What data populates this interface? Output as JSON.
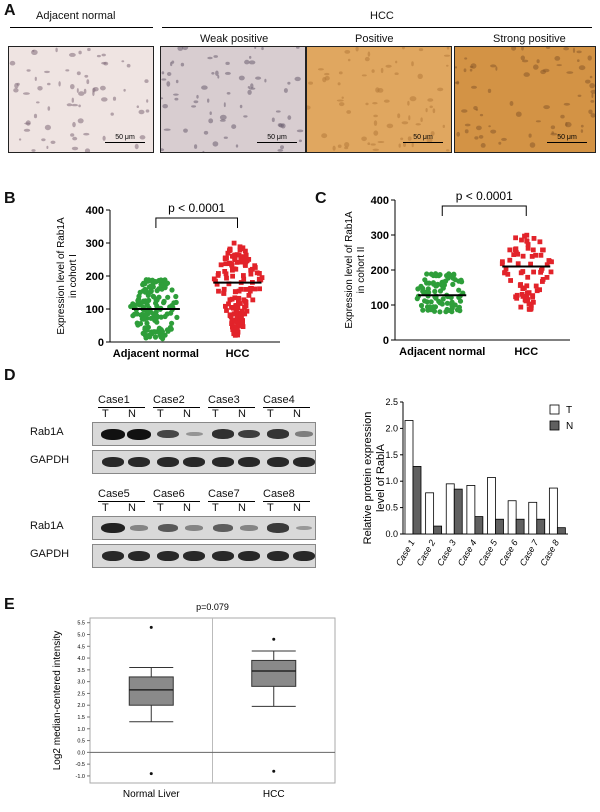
{
  "panelA": {
    "label": "A",
    "header_normal": "Adjacent normal",
    "header_hcc": "HCC",
    "images": [
      {
        "title": "",
        "scale": "50 μm",
        "tone": "#efe4e2",
        "fleck": "#7f6a78"
      },
      {
        "title": "Weak positive",
        "scale": "50 μm",
        "tone": "#d8cdd0",
        "fleck": "#6c5f70"
      },
      {
        "title": "Positive",
        "scale": "50 μm",
        "tone": "#e0a760",
        "fleck": "#b57a3a"
      },
      {
        "title": "Strong positive",
        "scale": "50 μm",
        "tone": "#d39345",
        "fleck": "#8a5a2a"
      }
    ]
  },
  "panelB": {
    "label": "B",
    "pvalue": "p < 0.0001",
    "chart_data": {
      "type": "scatter",
      "ylabel": "Expression level of Rab1A in cohort I",
      "yticks": [
        0,
        100,
        200,
        300,
        400
      ],
      "ylim": [
        0,
        400
      ],
      "categories": [
        "Adjacent normal",
        "HCC"
      ],
      "series": [
        {
          "name": "Adjacent normal",
          "mean": 100,
          "range": [
            10,
            190
          ],
          "color": "#2e9e3a"
        },
        {
          "name": "HCC",
          "mean": 180,
          "range": [
            20,
            300
          ],
          "color": "#e2232a"
        }
      ]
    }
  },
  "panelC": {
    "label": "C",
    "pvalue": "p < 0.0001",
    "chart_data": {
      "type": "scatter",
      "ylabel": "Expression level of Rab1A in cohort II",
      "yticks": [
        0,
        100,
        200,
        300,
        400
      ],
      "ylim": [
        0,
        400
      ],
      "categories": [
        "Adjacent normal",
        "HCC"
      ],
      "series": [
        {
          "name": "Adjacent normal",
          "mean": 128,
          "range": [
            80,
            190
          ],
          "color": "#2e9e3a"
        },
        {
          "name": "HCC",
          "mean": 210,
          "range": [
            85,
            300
          ],
          "color": "#e2232a"
        }
      ]
    }
  },
  "panelD": {
    "label": "D",
    "row1_cases": [
      "Case1",
      "Case2",
      "Case3",
      "Case4"
    ],
    "row2_cases": [
      "Case5",
      "Case6",
      "Case7",
      "Case8"
    ],
    "lane_T": "T",
    "lane_N": "N",
    "rab1a": "Rab1A",
    "gapdh": "GAPDH",
    "chart_data": {
      "type": "bar",
      "ylabel": "Relative protein expression level of RablA",
      "categories": [
        "Case 1",
        "Case 2",
        "Case 3",
        "Case 4",
        "Case 5",
        "Case 6",
        "Case 7",
        "Case 8"
      ],
      "yticks": [
        "0.0",
        "0.5",
        "1.0",
        "1.5",
        "2.0",
        "2.5"
      ],
      "ylim": [
        0,
        2.5
      ],
      "series": [
        {
          "name": "T",
          "values": [
            2.15,
            0.78,
            0.95,
            0.92,
            1.07,
            0.63,
            0.6,
            0.87
          ],
          "color": "#ffffff"
        },
        {
          "name": "N",
          "values": [
            1.28,
            0.15,
            0.85,
            0.33,
            0.28,
            0.28,
            0.28,
            0.12
          ],
          "color": "#606060"
        }
      ]
    }
  },
  "panelE": {
    "label": "E",
    "chart_data": {
      "type": "box",
      "title": "p=0.079",
      "ylabel": "Log2 median-centered intensity",
      "yticks": [
        "5.5",
        "5.0",
        "4.5",
        "4.0",
        "3.5",
        "3.0",
        "2.5",
        "2.0",
        "1.5",
        "1.0",
        "0.5",
        "0.0",
        "-0.5",
        "-1.0"
      ],
      "ylim": [
        -1.3,
        5.7
      ],
      "categories": [
        "Normal Liver",
        "HCC"
      ],
      "boxes": [
        {
          "name": "Normal Liver",
          "min": 1.3,
          "q1": 2.0,
          "median": 2.65,
          "q3": 3.2,
          "max": 3.6,
          "outliers": [
            5.3,
            -0.9
          ]
        },
        {
          "name": "HCC",
          "min": 1.95,
          "q1": 2.8,
          "median": 3.45,
          "q3": 3.9,
          "max": 4.3,
          "outliers": [
            4.8,
            -0.8
          ]
        }
      ]
    }
  }
}
